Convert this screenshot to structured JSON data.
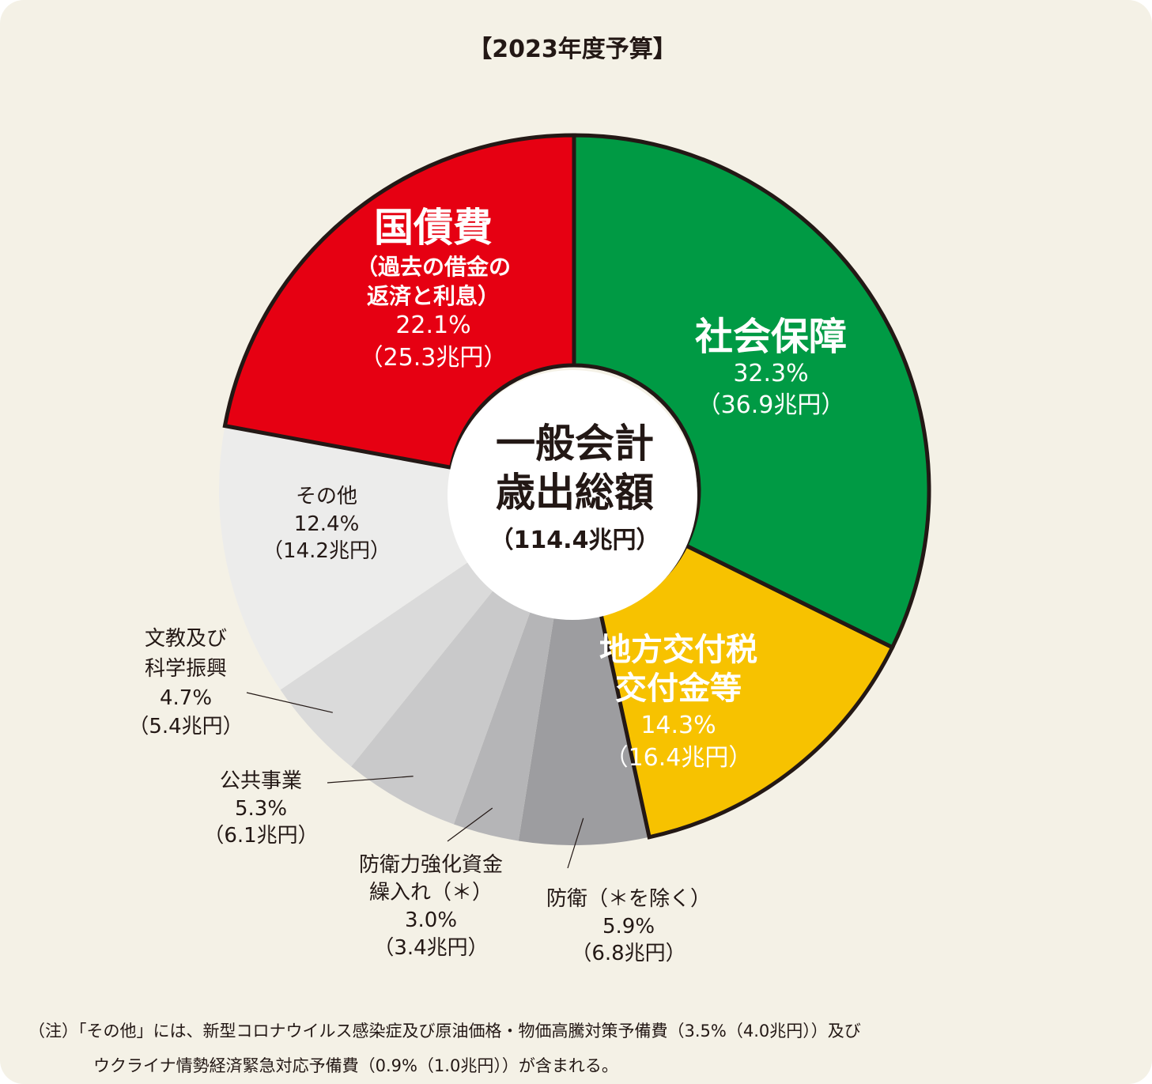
{
  "title": "【2023年度予算】",
  "center": {
    "line1": "一般会計",
    "line2": "歳出総額",
    "total": "（114.4兆円）"
  },
  "chart_data": {
    "type": "pie",
    "variant": "donut",
    "title": "【2023年度予算】",
    "total": "114.4兆円",
    "slices": [
      {
        "name": "社会保障",
        "percent": 32.3,
        "amount": 36.9,
        "color": "#009a44",
        "highlight": true
      },
      {
        "name": "地方交付税交付金等",
        "percent": 14.3,
        "amount": 16.4,
        "color": "#f7c200",
        "highlight": true
      },
      {
        "name": "防衛（＊を除く）",
        "percent": 5.9,
        "amount": 6.8,
        "color": "#9d9da0",
        "highlight": false
      },
      {
        "name": "防衛力強化資金繰入れ（＊）",
        "percent": 3.0,
        "amount": 3.4,
        "color": "#b5b5b7",
        "highlight": false
      },
      {
        "name": "公共事業",
        "percent": 5.3,
        "amount": 6.1,
        "color": "#c9c9ca",
        "highlight": false
      },
      {
        "name": "文教及び科学振興",
        "percent": 4.7,
        "amount": 5.4,
        "color": "#dadada",
        "highlight": false
      },
      {
        "name": "その他",
        "percent": 12.4,
        "amount": 14.2,
        "color": "#ececeb",
        "highlight": false
      },
      {
        "name": "国債費（過去の借金の返済と利息）",
        "percent": 22.1,
        "amount": 25.3,
        "color": "#e60012",
        "highlight": true
      }
    ]
  },
  "labels": {
    "shakai": {
      "name": "社会保障",
      "pct": "32.3%",
      "amt": "（36.9兆円）"
    },
    "chiho": {
      "name1": "地方交付税",
      "name2": "交付金等",
      "pct": "14.3%",
      "amt": "（16.4兆円）"
    },
    "boei": {
      "name": "防衛（＊を除く）",
      "pct": "5.9%",
      "amt": "（6.8兆円）"
    },
    "boeikyoka": {
      "name1": "防衛力強化資金",
      "name2": "繰入れ（＊）",
      "pct": "3.0%",
      "amt": "（3.4兆円）"
    },
    "kokyo": {
      "name": "公共事業",
      "pct": "5.3%",
      "amt": "（6.1兆円）"
    },
    "bunkyo": {
      "name1": "文教及び",
      "name2": "科学振興",
      "pct": "4.7%",
      "amt": "（5.4兆円）"
    },
    "sonota": {
      "name": "その他",
      "pct": "12.4%",
      "amt": "（14.2兆円）"
    },
    "kokusai": {
      "name": "国債費",
      "sub1": "（過去の借金の",
      "sub2": "返済と利息）",
      "pct": "22.1%",
      "amt": "（25.3兆円）"
    }
  },
  "note": {
    "line1": "（注）「その他」には、新型コロナウイルス感染症及び原油価格・物価高騰対策予備費（3.5%（4.0兆円））及び",
    "line2": "ウクライナ情勢経済緊急対応予備費（0.9%（1.0兆円））が含まれる。"
  }
}
